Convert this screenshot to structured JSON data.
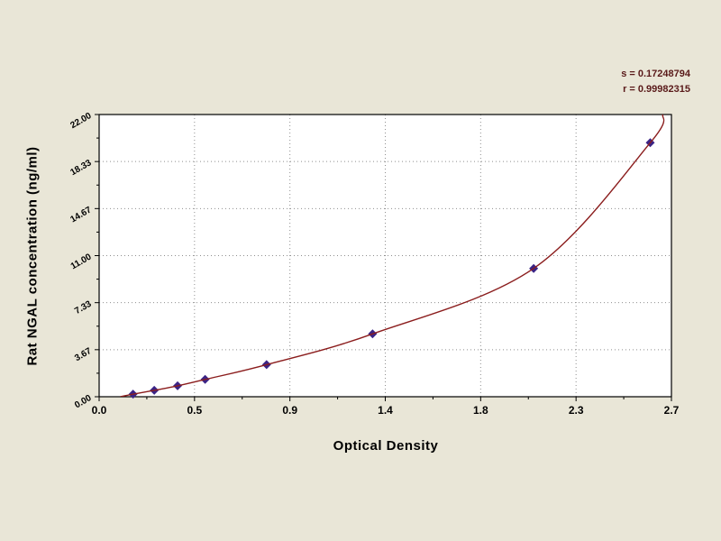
{
  "page": {
    "background": "#e9e6d7"
  },
  "chart_data": {
    "type": "scatter",
    "title": "",
    "xlabel": "Optical Density",
    "ylabel": "Rat NGAL concentration (ng/ml)",
    "xlim": [
      0,
      2.7
    ],
    "ylim": [
      0,
      22
    ],
    "grid": true,
    "legend": "none",
    "x_ticks": [
      {
        "value": 0.0,
        "label": "0.0"
      },
      {
        "value": 0.45,
        "label": "0.5"
      },
      {
        "value": 0.9,
        "label": "0.9"
      },
      {
        "value": 1.35,
        "label": "1.4"
      },
      {
        "value": 1.8,
        "label": "1.8"
      },
      {
        "value": 2.25,
        "label": "2.3"
      },
      {
        "value": 2.7,
        "label": "2.7"
      }
    ],
    "y_ticks": [
      {
        "value": 0,
        "label": "0.00"
      },
      {
        "value": 3.667,
        "label": "3.67"
      },
      {
        "value": 7.333,
        "label": "7.33"
      },
      {
        "value": 11,
        "label": "11.00"
      },
      {
        "value": 14.667,
        "label": "14.67"
      },
      {
        "value": 18.333,
        "label": "18.33"
      },
      {
        "value": 22,
        "label": "22.00"
      }
    ],
    "series": [
      {
        "name": "standard-points",
        "type": "scatter",
        "marker": "diamond",
        "color": "#3b2486",
        "points": [
          [
            0.16,
            0.2
          ],
          [
            0.26,
            0.5
          ],
          [
            0.37,
            0.85
          ],
          [
            0.5,
            1.35
          ],
          [
            0.79,
            2.5
          ],
          [
            1.29,
            4.9
          ],
          [
            2.05,
            10.0
          ],
          [
            2.6,
            19.8
          ]
        ]
      },
      {
        "name": "fit-curve",
        "type": "line",
        "color": "#8b1d1d",
        "points": [
          [
            0.1,
            0.0
          ],
          [
            0.16,
            0.2
          ],
          [
            0.26,
            0.5
          ],
          [
            0.37,
            0.85
          ],
          [
            0.5,
            1.35
          ],
          [
            0.79,
            2.5
          ],
          [
            1.29,
            4.9
          ],
          [
            2.05,
            10.0
          ],
          [
            2.6,
            19.8
          ],
          [
            2.66,
            22.0
          ]
        ]
      }
    ],
    "annotations": [
      {
        "name": "standard-error",
        "text": "s = 0.17248794"
      },
      {
        "name": "correlation-coefficient",
        "text": "r = 0.99982315"
      }
    ],
    "colors": {
      "background": "#e9e6d7",
      "plot_background": "#ffffff",
      "grid": "#8f8f8f",
      "axis": "#000000",
      "tick_labels": "#000000",
      "stats_text": "#5a1a1a"
    }
  }
}
